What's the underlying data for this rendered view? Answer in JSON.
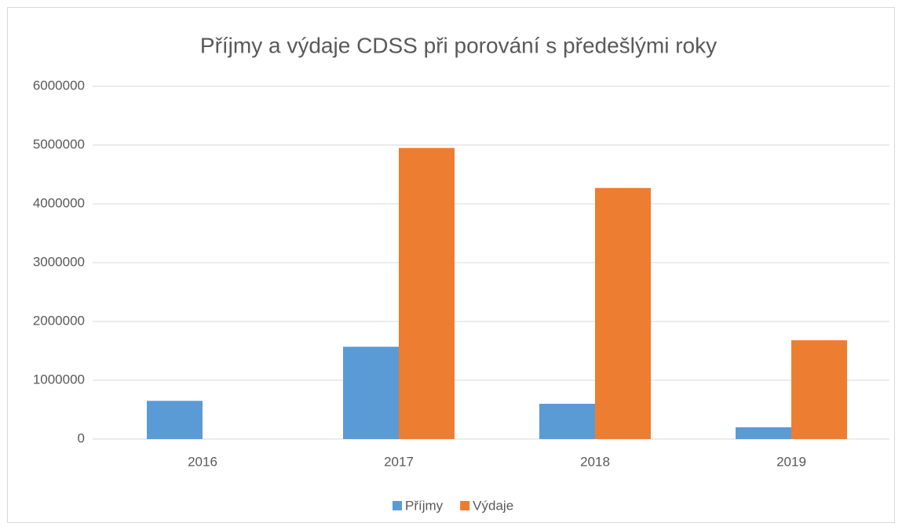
{
  "chart_data": {
    "type": "bar",
    "title": "Příjmy a výdaje CDSS při porování s předešlými roky",
    "categories": [
      "2016",
      "2017",
      "2018",
      "2019"
    ],
    "series": [
      {
        "name": "Příjmy",
        "color": "#5b9bd5",
        "values": [
          650000,
          1570000,
          600000,
          200000
        ]
      },
      {
        "name": "Výdaje",
        "color": "#ed7d31",
        "values": [
          null,
          4950000,
          4270000,
          1680000
        ]
      }
    ],
    "ylim": [
      0,
      6000000
    ],
    "yticks": [
      0,
      1000000,
      2000000,
      3000000,
      4000000,
      5000000,
      6000000
    ],
    "grid": true,
    "legend": "bottom"
  }
}
